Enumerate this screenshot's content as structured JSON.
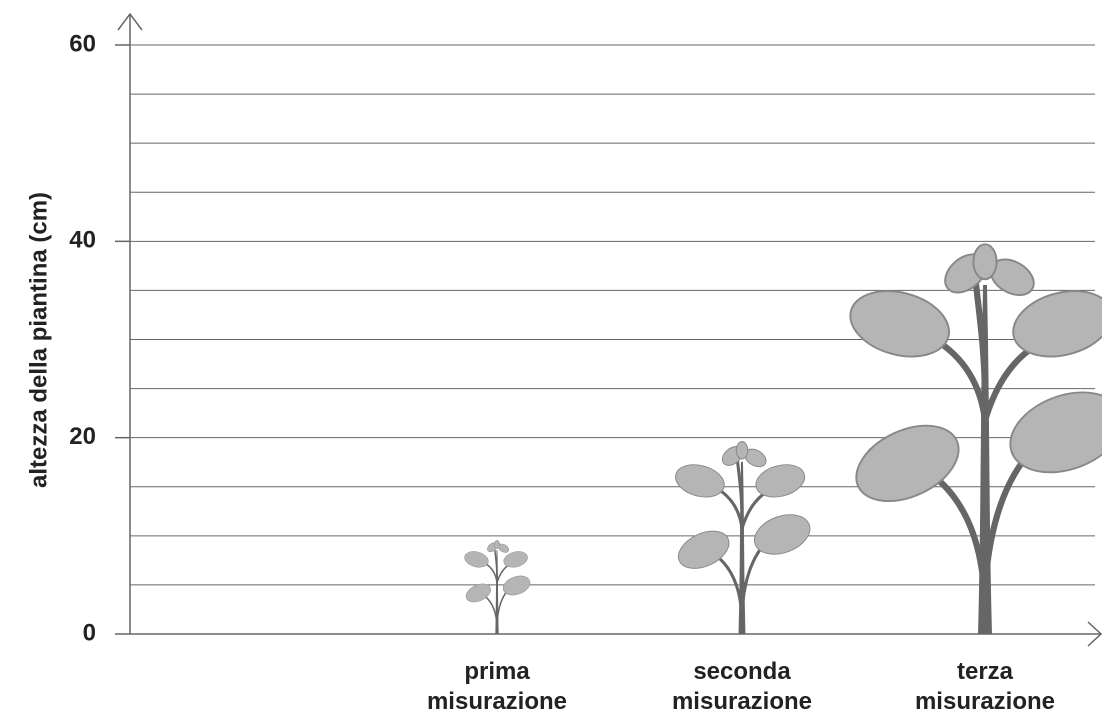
{
  "chart_data": {
    "type": "pictograph",
    "y_label": "altezza della piantina (cm)",
    "categories": [
      "prima misurazione",
      "seconda misurazione",
      "terza misurazione"
    ],
    "values": [
      9.5,
      19.5,
      39.5
    ],
    "color": "#b5b5b5",
    "ylim": [
      0,
      60
    ],
    "yticks": [
      0,
      20,
      40,
      60
    ],
    "ygrid": [
      0,
      5,
      10,
      15,
      20,
      25,
      30,
      35,
      40,
      45,
      50,
      55,
      60
    ],
    "grid": true
  }
}
